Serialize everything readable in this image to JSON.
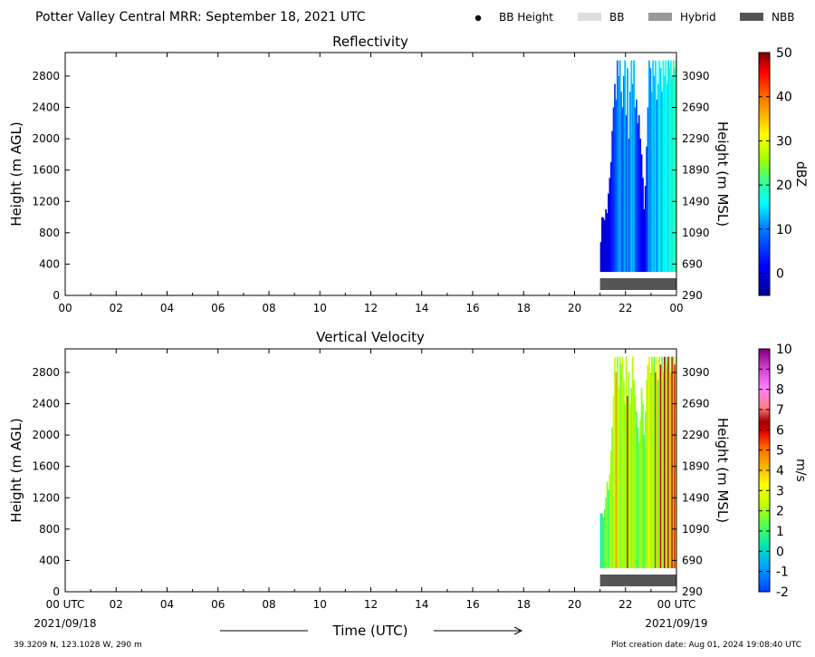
{
  "header": {
    "title": "Potter Valley Central MRR:  September 18, 2021 UTC",
    "legend": [
      {
        "label": "BB Height",
        "kind": "dot",
        "color": "#000000"
      },
      {
        "label": "BB",
        "kind": "bar",
        "color": "#dddddd"
      },
      {
        "label": "Hybrid",
        "kind": "bar",
        "color": "#999999"
      },
      {
        "label": "NBB",
        "kind": "bar",
        "color": "#555555"
      }
    ]
  },
  "footer": {
    "location": "39.3209 N, 123.1028 W, 290 m",
    "creation": "Plot creation date: Aug 01, 2024 19:08:40 UTC",
    "xlabel": "Time (UTC)",
    "start_date": "2021/09/18",
    "end_date": "2021/09/19"
  },
  "chart_data": [
    {
      "type": "heatmap",
      "title": "Reflectivity",
      "ylabel": "Height (m AGL)",
      "ylabel_right": "Height (m MSL)",
      "x_ticks": [
        "00",
        "02",
        "04",
        "06",
        "08",
        "10",
        "12",
        "14",
        "16",
        "18",
        "20",
        "22",
        "00"
      ],
      "xlim_hours": [
        0,
        24
      ],
      "ylim": [
        0,
        3100
      ],
      "y_ticks": [
        0,
        400,
        800,
        1200,
        1600,
        2000,
        2400,
        2800
      ],
      "y_ticks_right": [
        290,
        690,
        1090,
        1490,
        1890,
        2290,
        2690,
        3090
      ],
      "colorbar": {
        "label": "dBZ",
        "range": [
          -5,
          50
        ],
        "ticks": [
          0,
          10,
          20,
          30,
          40,
          50
        ]
      },
      "data_start_hour": 21.0,
      "data_min_height": 300,
      "data_max_height": 3000,
      "nbb_bar": {
        "start_hour": 21.0,
        "end_hour": 24.0
      },
      "columns": [
        {
          "hour": 21.0,
          "top": 680,
          "value": -1
        },
        {
          "hour": 21.05,
          "top": 1000,
          "value": 0
        },
        {
          "hour": 21.1,
          "top": 990,
          "value": 0
        },
        {
          "hour": 21.15,
          "top": 960,
          "value": -1
        },
        {
          "hour": 21.2,
          "top": 1100,
          "value": 0
        },
        {
          "hour": 21.25,
          "top": 1050,
          "value": 1
        },
        {
          "hour": 21.3,
          "top": 1300,
          "value": 0
        },
        {
          "hour": 21.35,
          "top": 1500,
          "value": 2
        },
        {
          "hour": 21.4,
          "top": 1700,
          "value": 3
        },
        {
          "hour": 21.45,
          "top": 2100,
          "value": 4
        },
        {
          "hour": 21.5,
          "top": 2400,
          "value": 5
        },
        {
          "hour": 21.55,
          "top": 2700,
          "value": 6
        },
        {
          "hour": 21.6,
          "top": 2500,
          "value": 8
        },
        {
          "hour": 21.65,
          "top": 3000,
          "value": 9
        },
        {
          "hour": 21.7,
          "top": 2800,
          "value": 11
        },
        {
          "hour": 21.75,
          "top": 3000,
          "value": 12
        },
        {
          "hour": 21.8,
          "top": 2600,
          "value": 10
        },
        {
          "hour": 21.85,
          "top": 2400,
          "value": 7
        },
        {
          "hour": 21.9,
          "top": 2800,
          "value": 9
        },
        {
          "hour": 21.95,
          "top": 3000,
          "value": 13
        },
        {
          "hour": 22.0,
          "top": 2300,
          "value": 6
        },
        {
          "hour": 22.05,
          "top": 2900,
          "value": 12
        },
        {
          "hour": 22.1,
          "top": 2000,
          "value": 8
        },
        {
          "hour": 22.15,
          "top": 2600,
          "value": 10
        },
        {
          "hour": 22.2,
          "top": 3000,
          "value": 14
        },
        {
          "hour": 22.25,
          "top": 2700,
          "value": 11
        },
        {
          "hour": 22.3,
          "top": 3000,
          "value": 13
        },
        {
          "hour": 22.35,
          "top": 2400,
          "value": 9
        },
        {
          "hour": 22.4,
          "top": 2500,
          "value": 7
        },
        {
          "hour": 22.45,
          "top": 2200,
          "value": 5
        },
        {
          "hour": 22.5,
          "top": 2300,
          "value": 4
        },
        {
          "hour": 22.55,
          "top": 2000,
          "value": 3
        },
        {
          "hour": 22.6,
          "top": 1800,
          "value": 2
        },
        {
          "hour": 22.65,
          "top": 1500,
          "value": 1
        },
        {
          "hour": 22.7,
          "top": 1100,
          "value": 0
        },
        {
          "hour": 22.75,
          "top": 1400,
          "value": 2
        },
        {
          "hour": 22.8,
          "top": 1900,
          "value": 5
        },
        {
          "hour": 22.85,
          "top": 2400,
          "value": 8
        },
        {
          "hour": 22.9,
          "top": 3000,
          "value": 12
        },
        {
          "hour": 22.95,
          "top": 2900,
          "value": 10
        },
        {
          "hour": 23.0,
          "top": 2600,
          "value": 13
        },
        {
          "hour": 23.05,
          "top": 3000,
          "value": 14
        },
        {
          "hour": 23.1,
          "top": 2800,
          "value": 12
        },
        {
          "hour": 23.15,
          "top": 3000,
          "value": 15
        },
        {
          "hour": 23.2,
          "top": 2500,
          "value": 10
        },
        {
          "hour": 23.25,
          "top": 2700,
          "value": 13
        },
        {
          "hour": 23.3,
          "top": 3000,
          "value": 16
        },
        {
          "hour": 23.35,
          "top": 2900,
          "value": 14
        },
        {
          "hour": 23.4,
          "top": 2600,
          "value": 12
        },
        {
          "hour": 23.45,
          "top": 3000,
          "value": 17
        },
        {
          "hour": 23.5,
          "top": 2800,
          "value": 15
        },
        {
          "hour": 23.55,
          "top": 3000,
          "value": 18
        },
        {
          "hour": 23.6,
          "top": 2700,
          "value": 16
        },
        {
          "hour": 23.65,
          "top": 3000,
          "value": 14
        },
        {
          "hour": 23.7,
          "top": 2900,
          "value": 19
        },
        {
          "hour": 23.75,
          "top": 3000,
          "value": 17
        },
        {
          "hour": 23.8,
          "top": 2800,
          "value": 15
        },
        {
          "hour": 23.85,
          "top": 3000,
          "value": 20
        },
        {
          "hour": 23.9,
          "top": 2900,
          "value": 18
        },
        {
          "hour": 23.95,
          "top": 3000,
          "value": 22
        }
      ]
    },
    {
      "type": "heatmap",
      "title": "Vertical Velocity",
      "ylabel": "Height (m AGL)",
      "ylabel_right": "Height (m MSL)",
      "x_ticks": [
        "00 UTC",
        "02",
        "04",
        "06",
        "08",
        "10",
        "12",
        "14",
        "16",
        "18",
        "20",
        "22",
        "00 UTC"
      ],
      "xlim_hours": [
        0,
        24
      ],
      "ylim": [
        0,
        3100
      ],
      "y_ticks": [
        0,
        400,
        800,
        1200,
        1600,
        2000,
        2400,
        2800
      ],
      "y_ticks_right": [
        290,
        690,
        1090,
        1490,
        1890,
        2290,
        2690,
        3090
      ],
      "colorbar": {
        "label": "m/s",
        "range": [
          -2,
          10
        ],
        "ticks": [
          -2,
          -1,
          0,
          1,
          2,
          3,
          4,
          5,
          6,
          7,
          8,
          9,
          10
        ]
      },
      "data_start_hour": 21.0,
      "data_min_height": 300,
      "data_max_height": 3000,
      "nbb_bar": {
        "start_hour": 21.0,
        "end_hour": 24.0
      },
      "columns": [
        {
          "hour": 21.0,
          "top": 1000,
          "value": 0.5
        },
        {
          "hour": 21.05,
          "top": 1000,
          "value": 1.0
        },
        {
          "hour": 21.1,
          "top": 950,
          "value": 0.8
        },
        {
          "hour": 21.15,
          "top": 1050,
          "value": 1.2
        },
        {
          "hour": 21.2,
          "top": 1200,
          "value": 1.5
        },
        {
          "hour": 21.25,
          "top": 1400,
          "value": 1.8
        },
        {
          "hour": 21.3,
          "top": 1300,
          "value": 1.0
        },
        {
          "hour": 21.35,
          "top": 1500,
          "value": 2.0
        },
        {
          "hour": 21.4,
          "top": 1800,
          "value": 2.2
        },
        {
          "hour": 21.45,
          "top": 2100,
          "value": 1.6
        },
        {
          "hour": 21.5,
          "top": 2500,
          "value": 2.4
        },
        {
          "hour": 21.55,
          "top": 3000,
          "value": 2.6
        },
        {
          "hour": 21.6,
          "top": 2800,
          "value": 4.5
        },
        {
          "hour": 21.65,
          "top": 3000,
          "value": 1.8
        },
        {
          "hour": 21.7,
          "top": 2600,
          "value": 2.3
        },
        {
          "hour": 21.75,
          "top": 3000,
          "value": 2.1
        },
        {
          "hour": 21.8,
          "top": 2900,
          "value": 1.5
        },
        {
          "hour": 21.85,
          "top": 3000,
          "value": 2.5
        },
        {
          "hour": 21.9,
          "top": 2700,
          "value": 2.0
        },
        {
          "hour": 21.95,
          "top": 2400,
          "value": 1.7
        },
        {
          "hour": 22.0,
          "top": 3000,
          "value": 2.2
        },
        {
          "hour": 22.05,
          "top": 2500,
          "value": 6.0
        },
        {
          "hour": 22.1,
          "top": 2800,
          "value": 1.9
        },
        {
          "hour": 22.15,
          "top": 2400,
          "value": 2.4
        },
        {
          "hour": 22.2,
          "top": 2600,
          "value": 1.6
        },
        {
          "hour": 22.25,
          "top": 3000,
          "value": 2.2
        },
        {
          "hour": 22.3,
          "top": 2700,
          "value": 1.8
        },
        {
          "hour": 22.35,
          "top": 2500,
          "value": 2.0
        },
        {
          "hour": 22.4,
          "top": 2300,
          "value": 1.4
        },
        {
          "hour": 22.45,
          "top": 2100,
          "value": 1.2
        },
        {
          "hour": 22.5,
          "top": 1900,
          "value": 1.6
        },
        {
          "hour": 22.55,
          "top": 2200,
          "value": 2.1
        },
        {
          "hour": 22.6,
          "top": 2600,
          "value": 1.9
        },
        {
          "hour": 22.65,
          "top": 2400,
          "value": 1.5
        },
        {
          "hour": 22.7,
          "top": 2000,
          "value": 1.1
        },
        {
          "hour": 22.75,
          "top": 2300,
          "value": 1.7
        },
        {
          "hour": 22.8,
          "top": 2700,
          "value": 2.3
        },
        {
          "hour": 22.85,
          "top": 2900,
          "value": 2.0
        },
        {
          "hour": 22.9,
          "top": 3000,
          "value": 3.5
        },
        {
          "hour": 22.95,
          "top": 2800,
          "value": 2.2
        },
        {
          "hour": 23.0,
          "top": 3000,
          "value": 1.8
        },
        {
          "hour": 23.05,
          "top": 2900,
          "value": 2.6
        },
        {
          "hour": 23.1,
          "top": 3000,
          "value": 1.4
        },
        {
          "hour": 23.15,
          "top": 2800,
          "value": 5.5
        },
        {
          "hour": 23.2,
          "top": 3000,
          "value": 2.9
        },
        {
          "hour": 23.25,
          "top": 2700,
          "value": 1.2
        },
        {
          "hour": 23.3,
          "top": 3000,
          "value": 2.1
        },
        {
          "hour": 23.35,
          "top": 2900,
          "value": 6.0
        },
        {
          "hour": 23.4,
          "top": 3000,
          "value": 1.5
        },
        {
          "hour": 23.45,
          "top": 2800,
          "value": 2.4
        },
        {
          "hour": 23.5,
          "top": 3000,
          "value": 6.2
        },
        {
          "hour": 23.55,
          "top": 3000,
          "value": 1.0
        },
        {
          "hour": 23.6,
          "top": 2900,
          "value": 3.8
        },
        {
          "hour": 23.65,
          "top": 3000,
          "value": 6.3
        },
        {
          "hour": 23.7,
          "top": 3000,
          "value": 2.0
        },
        {
          "hour": 23.75,
          "top": 2800,
          "value": 4.2
        },
        {
          "hour": 23.8,
          "top": 3000,
          "value": 6.1
        },
        {
          "hour": 23.85,
          "top": 3000,
          "value": 1.6
        },
        {
          "hour": 23.9,
          "top": 2900,
          "value": 5.8
        },
        {
          "hour": 23.95,
          "top": 3000,
          "value": 3.0
        }
      ]
    }
  ]
}
